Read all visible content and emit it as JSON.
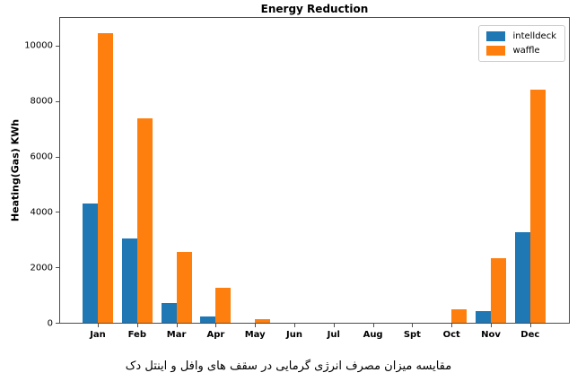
{
  "chart_data": {
    "type": "bar",
    "title": "Energy Reduction",
    "xlabel": "",
    "ylabel": "Heating(Gas) KWh",
    "categories": [
      "Jan",
      "Feb",
      "Mar",
      "Apr",
      "May",
      "Jun",
      "Jul",
      "Aug",
      "Spt",
      "Oct",
      "Nov",
      "Dec"
    ],
    "series": [
      {
        "name": "intelldeck",
        "color": "#1f77b4",
        "values": [
          4300,
          3030,
          720,
          240,
          0,
          0,
          0,
          0,
          0,
          0,
          410,
          3270
        ]
      },
      {
        "name": "waffle",
        "color": "#ff7f0e",
        "values": [
          10450,
          7380,
          2570,
          1260,
          130,
          0,
          0,
          0,
          0,
          500,
          2330,
          8400
        ]
      }
    ],
    "ylim": [
      0,
      11000
    ],
    "yticks": [
      0,
      2000,
      4000,
      6000,
      8000,
      10000
    ],
    "grid": false,
    "legend_position": "upper right"
  },
  "caption": "مقایسه میزان مصرف انرژی گرمایی در سقف های وافل و اینتل دک"
}
